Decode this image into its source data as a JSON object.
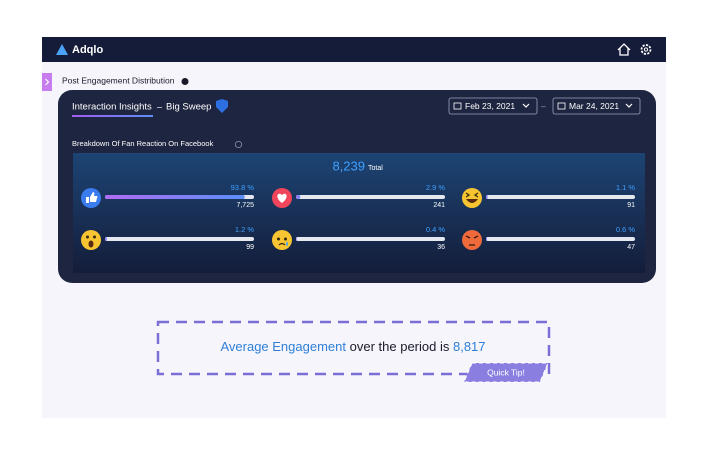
{
  "app": {
    "name": "Adqlo"
  },
  "page": {
    "title": "Post Engagement Distribution"
  },
  "panel": {
    "tab": "Interaction Insights",
    "separator": "–",
    "campaign": "Big Sweep",
    "date_from": "Feb 23, 2021",
    "date_separator": "–",
    "date_to": "Mar 24, 2021"
  },
  "breakdown": {
    "title": "Breakdown Of Fan Reaction On Facebook",
    "total": {
      "value": 8239,
      "label": "8,239"
    },
    "total_caption": "Total",
    "percents": [
      93.8,
      2.9,
      1.1,
      1.2,
      0.4,
      0.6
    ],
    "percent_labels": [
      "93.8 %",
      "2.9 %",
      "1.1 %",
      "1.2 %",
      "0.4 %",
      "0.6 %"
    ],
    "counts": [
      {
        "value": 7725,
        "label": "7,725"
      },
      241,
      91,
      99,
      36,
      47
    ]
  },
  "tip": {
    "highlight": "Average Engagement",
    "text": "over the period is",
    "value": {
      "value": 8817,
      "label": "8,817"
    },
    "badge": "Quick Tip!"
  }
}
